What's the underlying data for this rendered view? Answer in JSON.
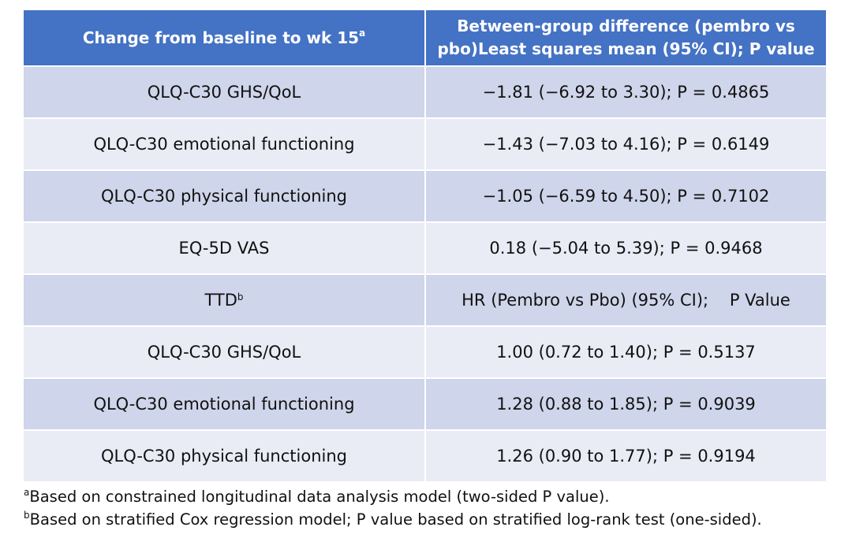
{
  "table": {
    "header": {
      "col1": "Change from baseline to wk 15",
      "col1_sup": "a",
      "col2_line1": "Between-group difference (pembro vs",
      "col2_line2": "pbo)Least squares mean (95% CI); P value"
    },
    "rows": [
      {
        "label": "QLQ-C30 GHS/QoL",
        "value": "−1.81 (−6.92 to 3.30); P = 0.4865"
      },
      {
        "label": "QLQ-C30 emotional functioning",
        "value": "−1.43 (−7.03 to 4.16); P = 0.6149"
      },
      {
        "label": "QLQ-C30 physical functioning",
        "value": "−1.05 (−6.59 to 4.50); P = 0.7102"
      },
      {
        "label": "EQ-5D VAS",
        "value": "0.18 (−5.04 to 5.39); P = 0.9468"
      },
      {
        "label": "TTD",
        "label_sup": "b",
        "value": "HR (Pembro vs Pbo) (95% CI);    P Value"
      },
      {
        "label": "QLQ-C30 GHS/QoL",
        "value": "1.00 (0.72 to 1.40); P = 0.5137"
      },
      {
        "label": "QLQ-C30 emotional functioning",
        "value": "1.28 (0.88 to 1.85); P = 0.9039"
      },
      {
        "label": "QLQ-C30 physical functioning",
        "value": "1.26 (0.90 to 1.77); P = 0.9194"
      }
    ]
  },
  "footnotes": [
    {
      "marker": "a",
      "text": "Based on constrained longitudinal data analysis model (two-sided P value)."
    },
    {
      "marker": "b",
      "text": "Based on stratified Cox regression model; P value based on stratified log-rank test (one-sided)."
    }
  ],
  "colors": {
    "header_bg": "#4472c4",
    "row_odd_bg": "#cfd5ea",
    "row_even_bg": "#e9ebf5"
  }
}
